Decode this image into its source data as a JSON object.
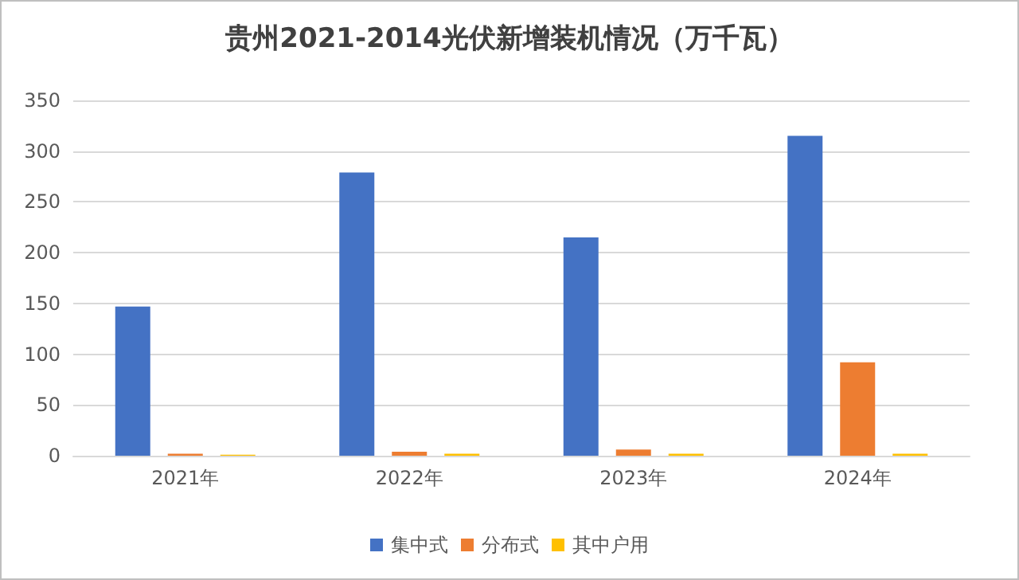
{
  "chart_data": {
    "type": "bar",
    "title": "贵州2021-2014光伏新增装机情况（万千瓦）",
    "categories": [
      "2021年",
      "2022年",
      "2023年",
      "2024年"
    ],
    "series": [
      {
        "name": "集中式",
        "color": "#4472c4",
        "values": [
          147,
          279,
          215,
          315
        ]
      },
      {
        "name": "分布式",
        "color": "#ed7d31",
        "values": [
          2,
          4,
          6,
          92
        ]
      },
      {
        "name": "其中户用",
        "color": "#ffc000",
        "values": [
          1,
          2,
          2,
          2
        ]
      }
    ],
    "ylim": [
      0,
      350
    ],
    "yticks": [
      0,
      50,
      100,
      150,
      200,
      250,
      300,
      350
    ],
    "grid": "y",
    "legend": "bottom"
  }
}
